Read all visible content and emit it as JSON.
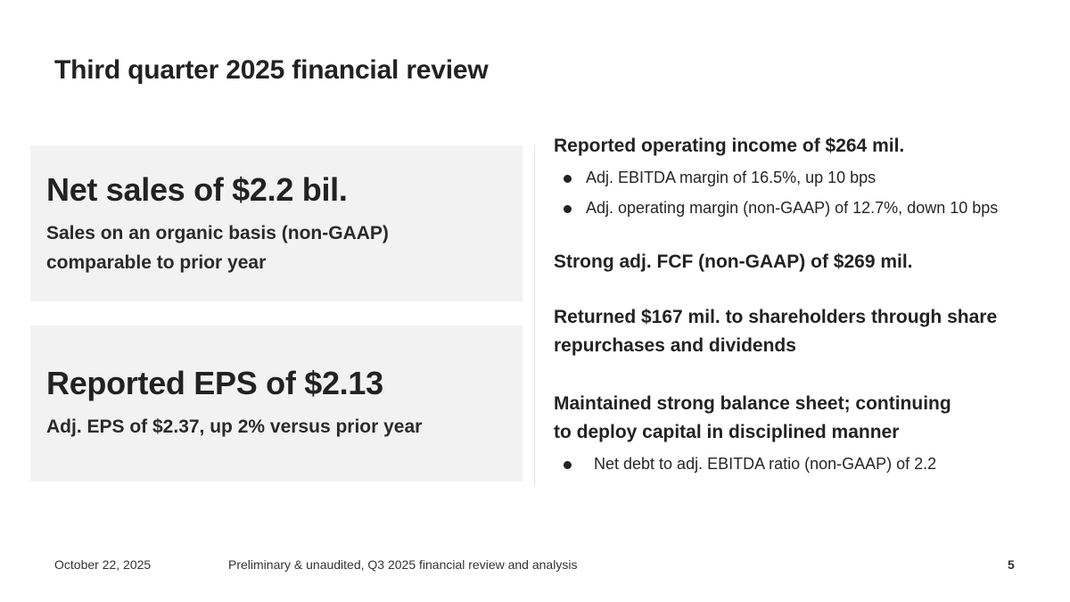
{
  "slide": {
    "title": "Third quarter 2025 financial review",
    "cards": [
      {
        "heading": "Net sales of $2.2 bil.",
        "sub_lines": [
          "Sales on an organic basis (non-GAAP)",
          "comparable to prior year"
        ]
      },
      {
        "heading": "Reported EPS of $2.13",
        "sub_lines": [
          "Adj. EPS of $2.37, up 2% versus prior year"
        ]
      }
    ],
    "points": [
      {
        "head_lines": [
          "Reported operating income of $264 mil."
        ],
        "bullets": [
          "Adj. EBITDA margin of 16.5%, up 10 bps",
          "Adj. operating margin (non-GAAP) of 12.7%, down 10 bps"
        ]
      },
      {
        "head_lines": [
          "Strong adj. FCF (non-GAAP) of $269 mil."
        ],
        "bullets": []
      },
      {
        "head_lines": [
          "Returned $167 mil. to shareholders through share",
          "repurchases and dividends"
        ],
        "bullets": []
      },
      {
        "head_lines": [
          "Maintained strong balance sheet; continuing",
          "to deploy capital in disciplined manner"
        ],
        "bullets": [
          "Net debt to adj. EBITDA ratio (non-GAAP) of 2.2"
        ]
      }
    ],
    "footer": {
      "date": "October 22, 2025",
      "note": "Preliminary & unaudited, Q3 2025 financial review and analysis",
      "page": "5"
    }
  }
}
